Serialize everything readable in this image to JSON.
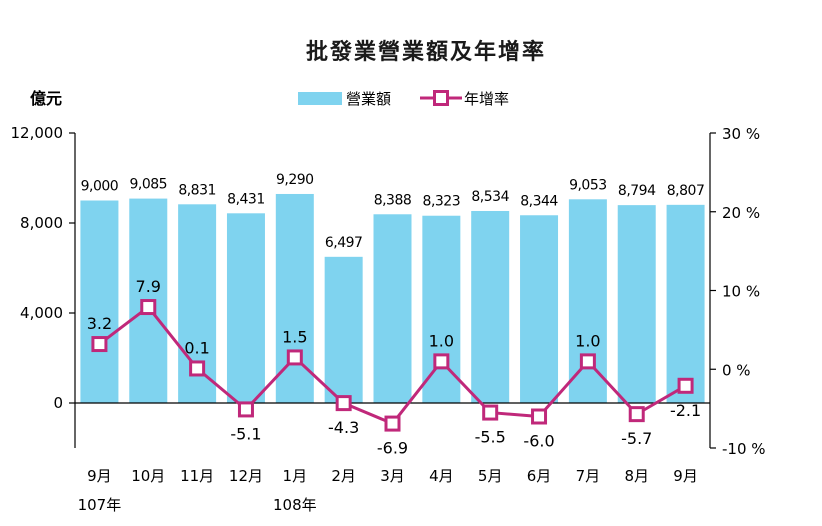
{
  "chart_data": {
    "type": "bar+line",
    "title": "批發業營業額及年增率",
    "unit_left": "億元",
    "categories": [
      "9月",
      "10月",
      "11月",
      "12月",
      "1月",
      "2月",
      "3月",
      "4月",
      "5月",
      "6月",
      "7月",
      "8月",
      "9月"
    ],
    "year_labels": [
      {
        "index": 0,
        "label": "107年"
      },
      {
        "index": 4,
        "label": "108年"
      }
    ],
    "series": [
      {
        "name": "營業額",
        "type": "bar",
        "axis": "left",
        "color": "#7fd3ef",
        "values": [
          9000,
          9085,
          8831,
          8431,
          9290,
          6497,
          8388,
          8323,
          8534,
          8344,
          9053,
          8794,
          8807
        ],
        "labels": [
          "9,000",
          "9,085",
          "8,831",
          "8,431",
          "9,290",
          "6,497",
          "8,388",
          "8,323",
          "8,534",
          "8,344",
          "9,053",
          "8,794",
          "8,807"
        ]
      },
      {
        "name": "年增率",
        "type": "line",
        "axis": "right",
        "color": "#c0287a",
        "values": [
          3.2,
          7.9,
          0.1,
          -5.1,
          1.5,
          -4.3,
          -6.9,
          1.0,
          -5.5,
          -6.0,
          1.0,
          -5.7,
          -2.1
        ],
        "labels": [
          "3.2",
          "7.9",
          "0.1",
          "-5.1",
          "1.5",
          "-4.3",
          "-6.9",
          "1.0",
          "-5.5",
          "-6.0",
          "1.0",
          "-5.7",
          "-2.1"
        ]
      }
    ],
    "y_left": {
      "range": [
        -2000,
        12000
      ],
      "ticks": [
        0,
        4000,
        8000,
        12000
      ],
      "tick_labels": [
        "0",
        "4,000",
        "8,000",
        "12,000"
      ]
    },
    "y_right": {
      "range": [
        -10,
        30
      ],
      "ticks": [
        -10,
        0,
        10,
        20,
        30
      ],
      "tick_labels": [
        "-10 %",
        "0 %",
        "10 %",
        "20 %",
        "30 %"
      ]
    },
    "legend": {
      "position": "top",
      "entries": [
        "營業額",
        "年增率"
      ]
    }
  }
}
